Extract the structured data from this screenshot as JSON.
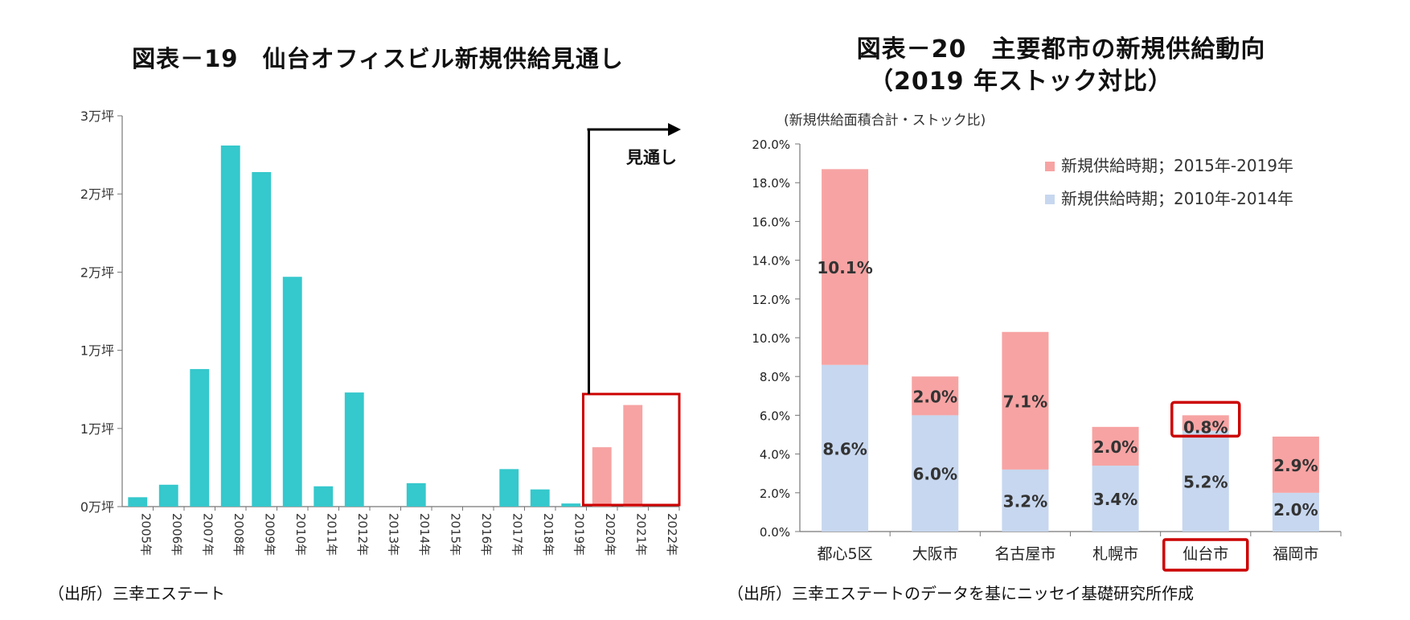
{
  "chart_data": [
    {
      "type": "bar",
      "title": "図表－19　仙台オフィスビル新規供給見通し",
      "yticks": [
        "0万坪",
        "1万坪",
        "1万坪",
        "2万坪",
        "2万坪",
        "3万坪"
      ],
      "ylim": [
        0,
        2.5
      ],
      "categories": [
        "2005年",
        "2006年",
        "2007年",
        "2008年",
        "2009年",
        "2010年",
        "2011年",
        "2012年",
        "2013年",
        "2014年",
        "2015年",
        "2016年",
        "2017年",
        "2018年",
        "2019年",
        "2020年",
        "2021年",
        "2022年"
      ],
      "values": [
        0.06,
        0.14,
        0.88,
        2.31,
        2.14,
        1.47,
        0.13,
        0.73,
        0,
        0.15,
        0,
        0,
        0.24,
        0.11,
        0.02,
        0.38,
        0.65,
        0
      ],
      "forecast_from": "2020年",
      "forecast_label": "見通し",
      "colors": {
        "actual": "#35c8cc",
        "forecast": "#f7a3a3",
        "highlight": "#cc0000"
      },
      "source": "（出所）三幸エステート"
    },
    {
      "type": "bar",
      "stacked": true,
      "title": "図表－20　主要都市の新規供給動向",
      "subtitle": "（2019 年ストック対比）",
      "ylabel": "(新規供給面積合計・ストック比)",
      "ylim": [
        0,
        20
      ],
      "yticks": [
        "0.0%",
        "2.0%",
        "4.0%",
        "6.0%",
        "8.0%",
        "10.0%",
        "12.0%",
        "14.0%",
        "16.0%",
        "18.0%",
        "20.0%"
      ],
      "categories": [
        "都心5区",
        "大阪市",
        "名古屋市",
        "札幌市",
        "仙台市",
        "福岡市"
      ],
      "series": [
        {
          "name": "新規供給時期；2010年-2014年",
          "values": [
            8.6,
            6.0,
            3.2,
            3.4,
            5.2,
            2.0
          ],
          "labels": [
            "8.6%",
            "6.0%",
            "3.2%",
            "3.4%",
            "5.2%",
            "2.0%"
          ],
          "color": "#c7d7ef"
        },
        {
          "name": "新規供給時期；2015年-2019年",
          "values": [
            10.1,
            2.0,
            7.1,
            2.0,
            0.8,
            2.9
          ],
          "labels": [
            "10.1%",
            "2.0%",
            "7.1%",
            "2.0%",
            "0.8%",
            "2.9%"
          ],
          "color": "#f7a3a3"
        }
      ],
      "highlight": "仙台市",
      "legend": "top-right",
      "source": "（出所）三幸エステートのデータを基にニッセイ基礎研究所作成"
    }
  ]
}
